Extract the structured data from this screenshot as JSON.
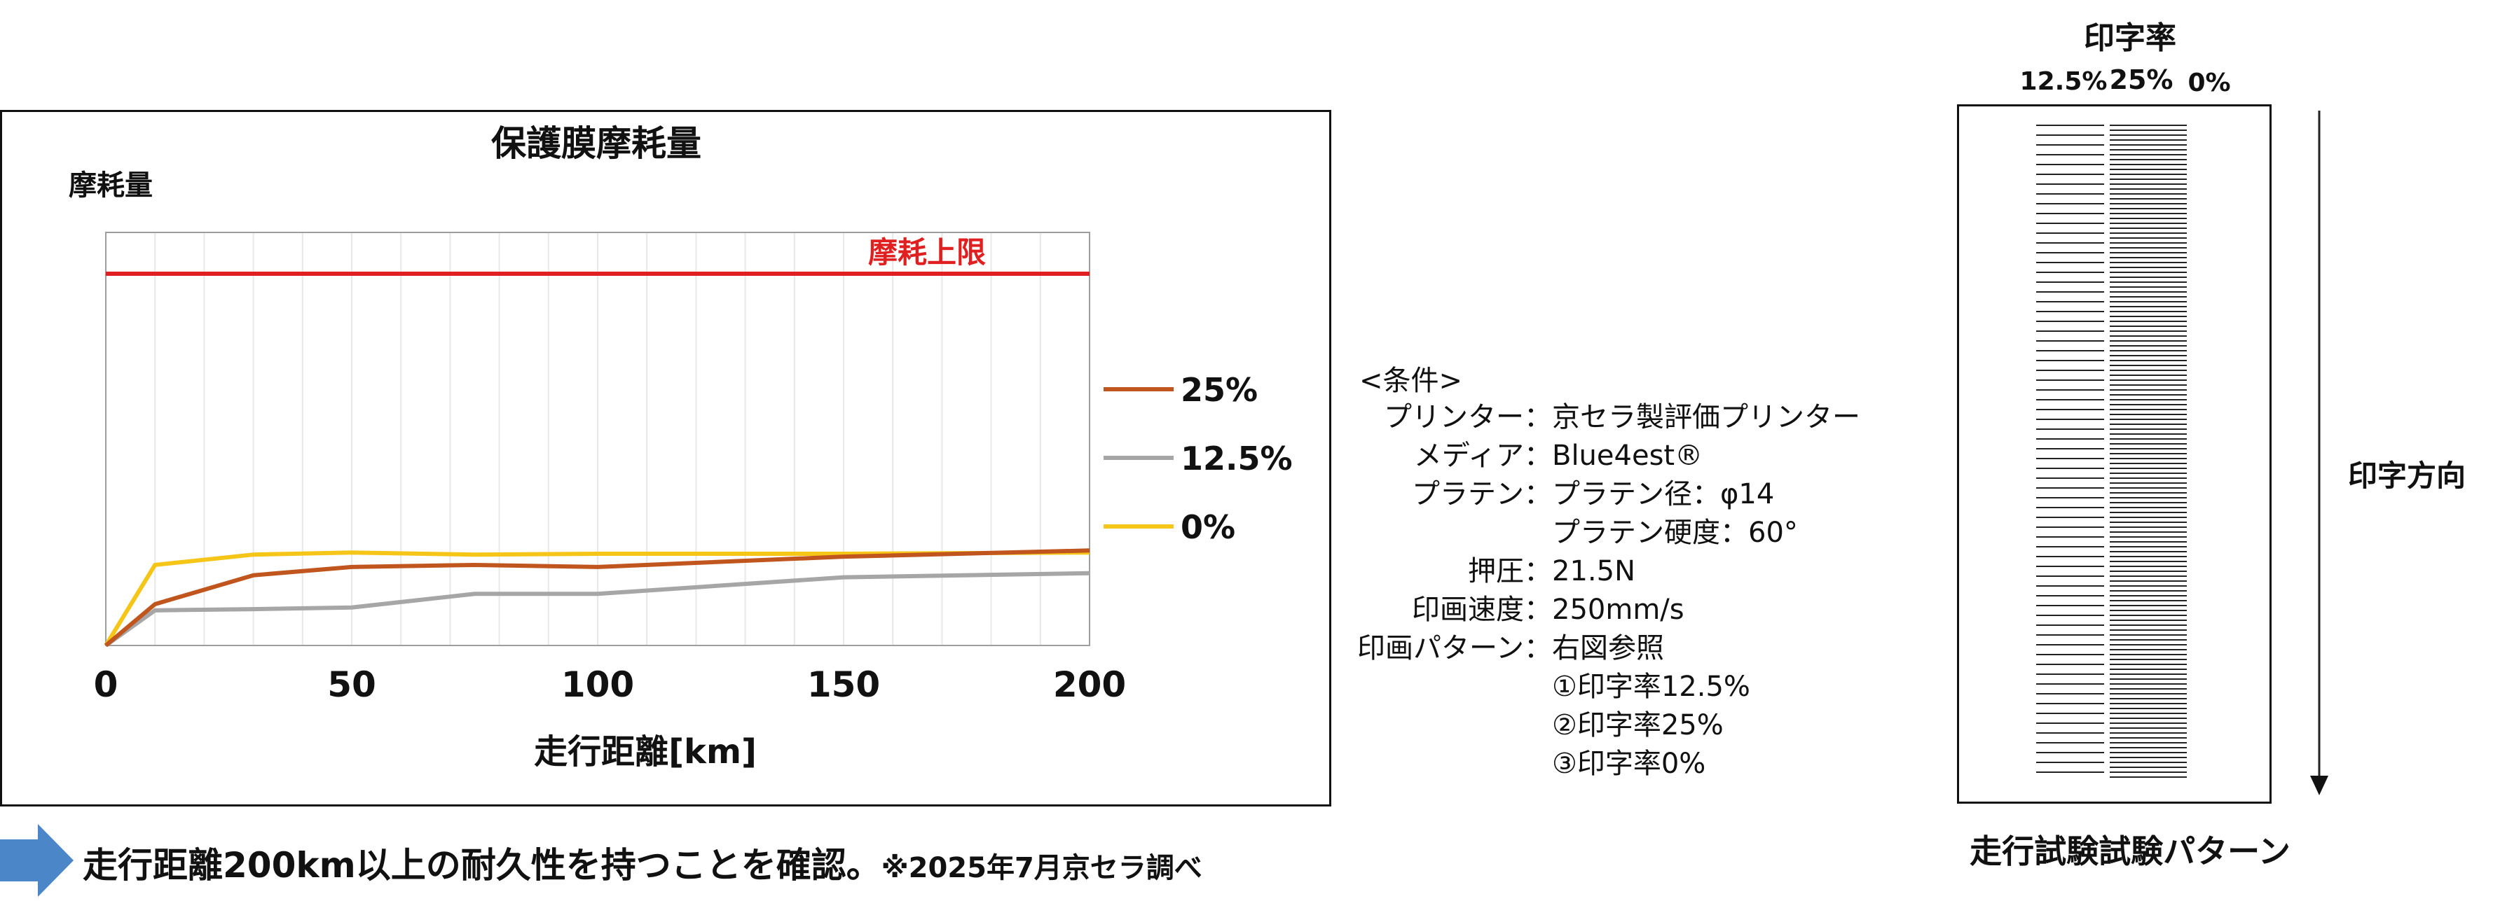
{
  "chart_data": {
    "type": "line",
    "title": "保護膜摩耗量",
    "ylabel": "摩耗量",
    "xlabel": "走行距離[km]",
    "xlim": [
      0,
      200
    ],
    "x_ticks": [
      0,
      50,
      100,
      150,
      200
    ],
    "ylim": [
      0,
      1
    ],
    "y_tick_labels_shown": false,
    "grid": "vertical",
    "legend_position": "right",
    "limit_line": {
      "label": "摩耗上限",
      "y": 0.9,
      "color": "#e02020"
    },
    "series": [
      {
        "name": "25%",
        "color": "#c0561d",
        "x": [
          0,
          10,
          30,
          50,
          75,
          100,
          150,
          200
        ],
        "y": [
          0,
          0.1,
          0.17,
          0.19,
          0.195,
          0.19,
          0.215,
          0.23
        ]
      },
      {
        "name": "12.5%",
        "color": "#a6a6a6",
        "x": [
          0,
          10,
          30,
          50,
          75,
          100,
          150,
          200
        ],
        "y": [
          0,
          0.085,
          0.088,
          0.092,
          0.125,
          0.125,
          0.165,
          0.175
        ]
      },
      {
        "name": "0%",
        "color": "#f5c518",
        "x": [
          0,
          10,
          30,
          50,
          75,
          100,
          150,
          200
        ],
        "y": [
          0,
          0.195,
          0.22,
          0.225,
          0.22,
          0.222,
          0.222,
          0.225
        ]
      }
    ]
  },
  "conditions": {
    "heading": "<条件>",
    "rows": [
      {
        "label": "プリンター：",
        "value": "京セラ製評価プリンター"
      },
      {
        "label": "メディア：",
        "value": "Blue4est®"
      },
      {
        "label": "プラテン：",
        "value": "プラテン径：φ14"
      },
      {
        "label": "",
        "value": "プラテン硬度：60°"
      },
      {
        "label": "押圧：",
        "value": "21.5N"
      },
      {
        "label": "印画速度：",
        "value": "250mm/s"
      },
      {
        "label": "印画パターン：",
        "value": "右図参照"
      },
      {
        "label": "",
        "value": "①印字率12.5%"
      },
      {
        "label": "",
        "value": "②印字率25%"
      },
      {
        "label": "",
        "value": "③印字率0%"
      }
    ]
  },
  "pattern": {
    "title": "印字率",
    "columns": [
      "12.5%",
      "25%",
      "0%"
    ],
    "direction_label": "印字方向",
    "caption": "走行試験試験パターン"
  },
  "footer": {
    "main_text": "走行距離200km以上の耐久性を持つことを確認。",
    "note_text": "※2025年7月京セラ調べ",
    "arrow_color": "#4a86c8"
  }
}
